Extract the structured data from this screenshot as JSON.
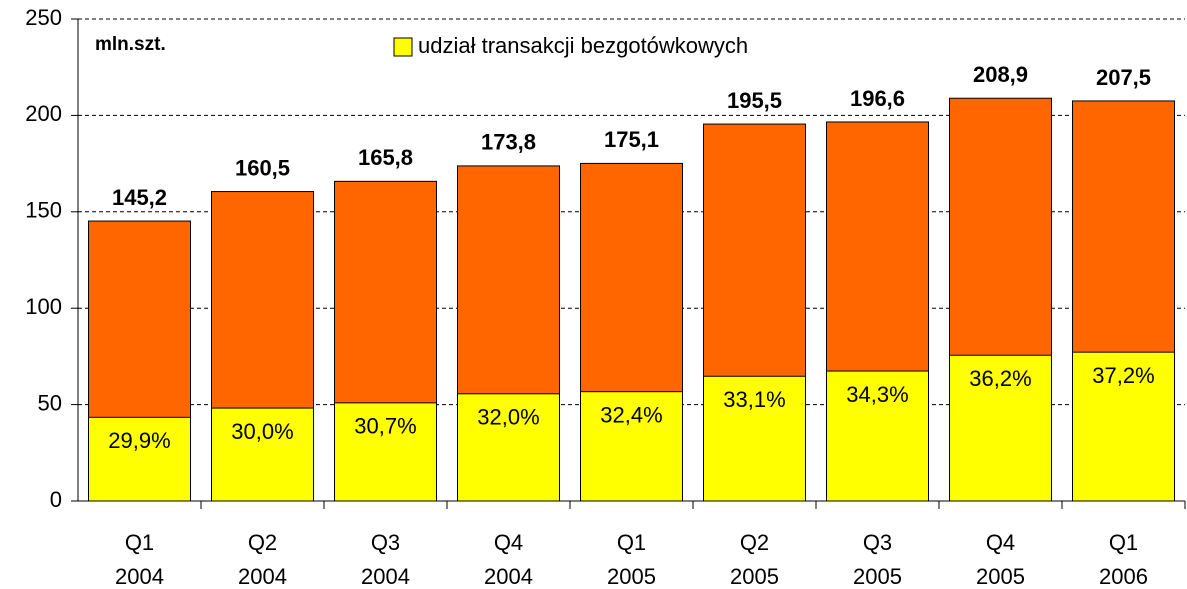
{
  "chart_data": {
    "type": "bar",
    "y_unit_label": "mln.szt.",
    "categories": [
      [
        "Q1",
        "2004"
      ],
      [
        "Q2",
        "2004"
      ],
      [
        "Q3",
        "2004"
      ],
      [
        "Q4",
        "2004"
      ],
      [
        "Q1",
        "2005"
      ],
      [
        "Q2",
        "2005"
      ],
      [
        "Q3",
        "2005"
      ],
      [
        "Q4",
        "2005"
      ],
      [
        "Q1",
        "2006"
      ]
    ],
    "series": [
      {
        "color": "#ff6600",
        "values": [
          145.2,
          160.5,
          165.8,
          173.8,
          175.1,
          195.5,
          196.6,
          208.9,
          207.5
        ],
        "value_labels": [
          "145,2",
          "160,5",
          "165,8",
          "173,8",
          "175,1",
          "195,5",
          "196,6",
          "208,9",
          "207,5"
        ]
      },
      {
        "name": "udział transakcji bezgotówkowych",
        "color": "#ffff00",
        "values": [
          43.4,
          48.2,
          50.9,
          55.6,
          56.7,
          64.7,
          67.4,
          75.6,
          77.2
        ]
      }
    ],
    "share": {
      "values": [
        29.9,
        30.0,
        30.7,
        32.0,
        32.4,
        33.1,
        34.3,
        36.2,
        37.2
      ],
      "value_labels": [
        "29,9%",
        "30,0%",
        "30,7%",
        "32,0%",
        "32,4%",
        "33,1%",
        "34,3%",
        "36,2%",
        "37,2%"
      ]
    },
    "ylim": [
      0,
      250
    ],
    "yticks": [
      0,
      50,
      100,
      150,
      200,
      250
    ],
    "grid": true
  }
}
